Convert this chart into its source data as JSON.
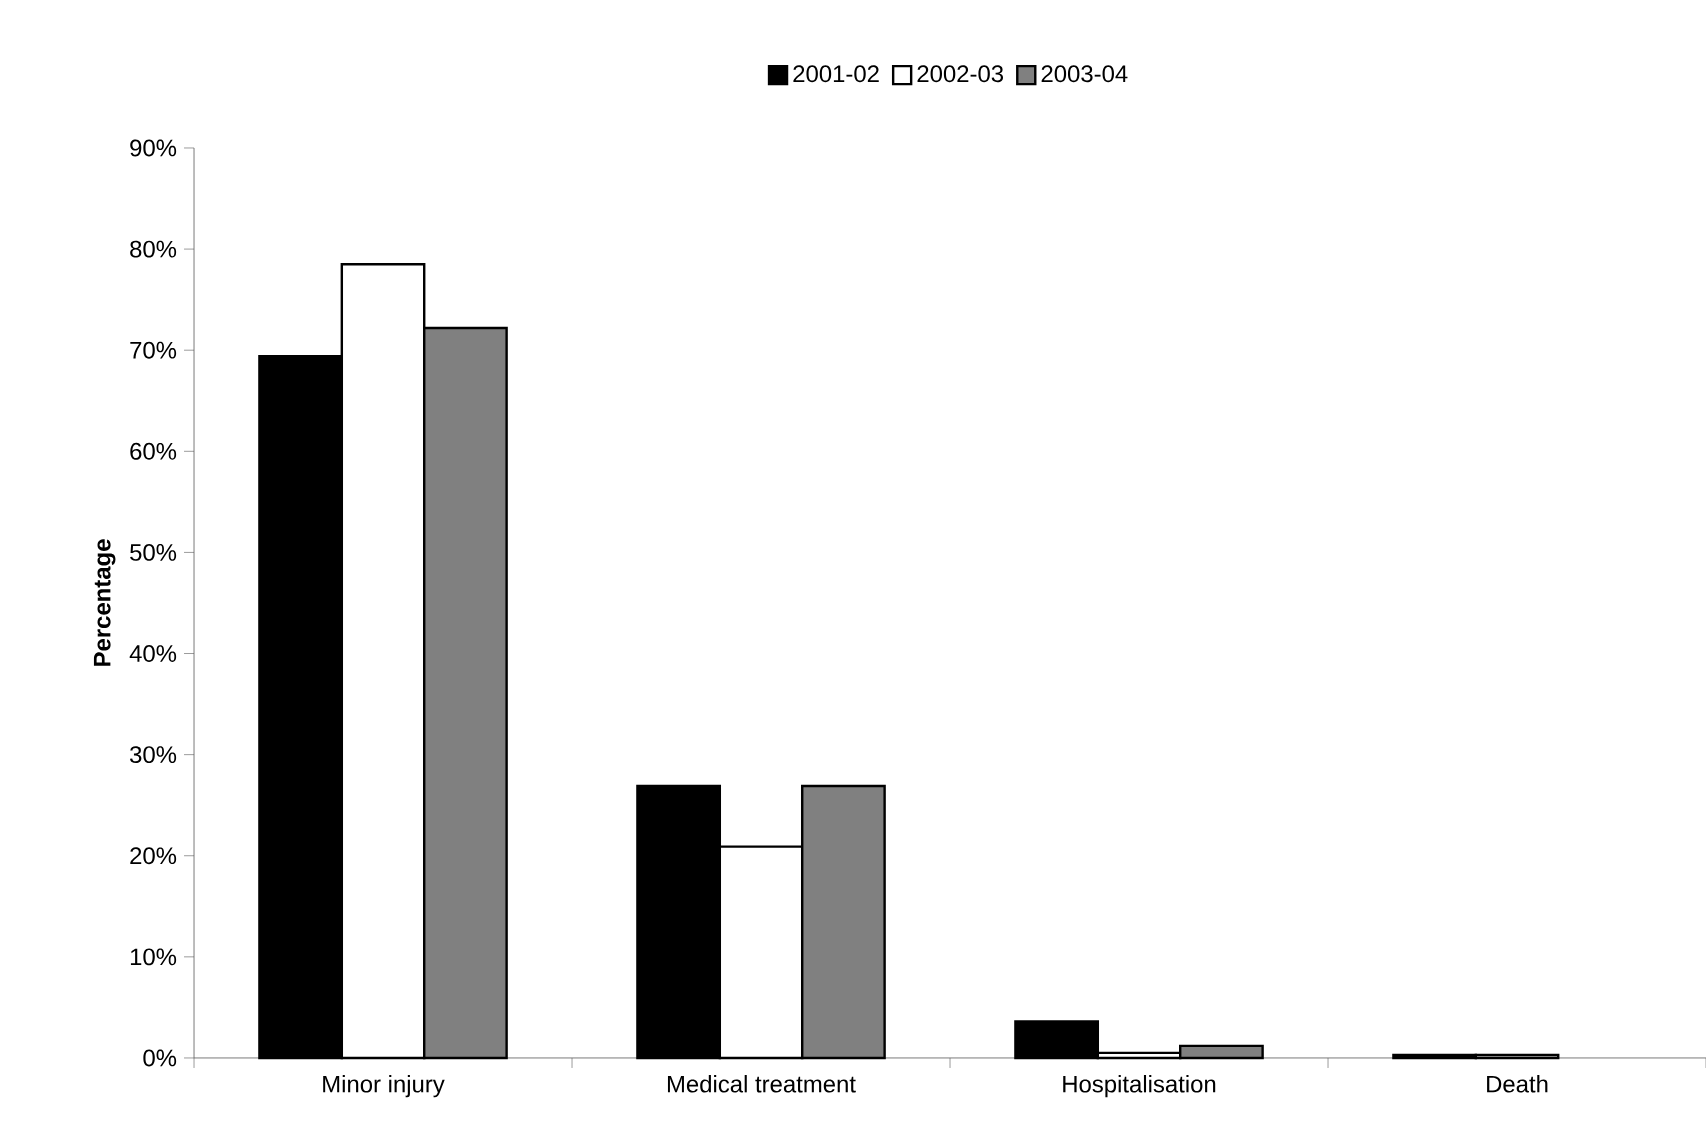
{
  "chart_data": {
    "type": "bar",
    "categories": [
      "Minor injury",
      "Medical treatment",
      "Hospitalisation",
      "Death"
    ],
    "ylabel": "Percentage",
    "series": [
      {
        "name": "2001-02",
        "color": "#000000",
        "values": [
          69.4,
          26.9,
          3.6,
          0.3
        ]
      },
      {
        "name": "2002-03",
        "color": "#ffffff",
        "values": [
          78.5,
          20.9,
          0.5,
          0.3
        ]
      },
      {
        "name": "2003-04",
        "color": "#808080",
        "values": [
          72.2,
          26.9,
          1.2,
          0
        ]
      }
    ],
    "ylim": [
      0,
      90
    ],
    "yticks": [
      {
        "value": 0,
        "label": "0%"
      },
      {
        "value": 10,
        "label": "10%"
      },
      {
        "value": 20,
        "label": "20%"
      },
      {
        "value": 30,
        "label": "30%"
      },
      {
        "value": 40,
        "label": "40%"
      },
      {
        "value": 50,
        "label": "50%"
      },
      {
        "value": 60,
        "label": "60%"
      },
      {
        "value": 70,
        "label": "70%"
      },
      {
        "value": 80,
        "label": "80%"
      },
      {
        "value": 90,
        "label": "90%"
      }
    ],
    "legend": "top",
    "grid": false
  }
}
